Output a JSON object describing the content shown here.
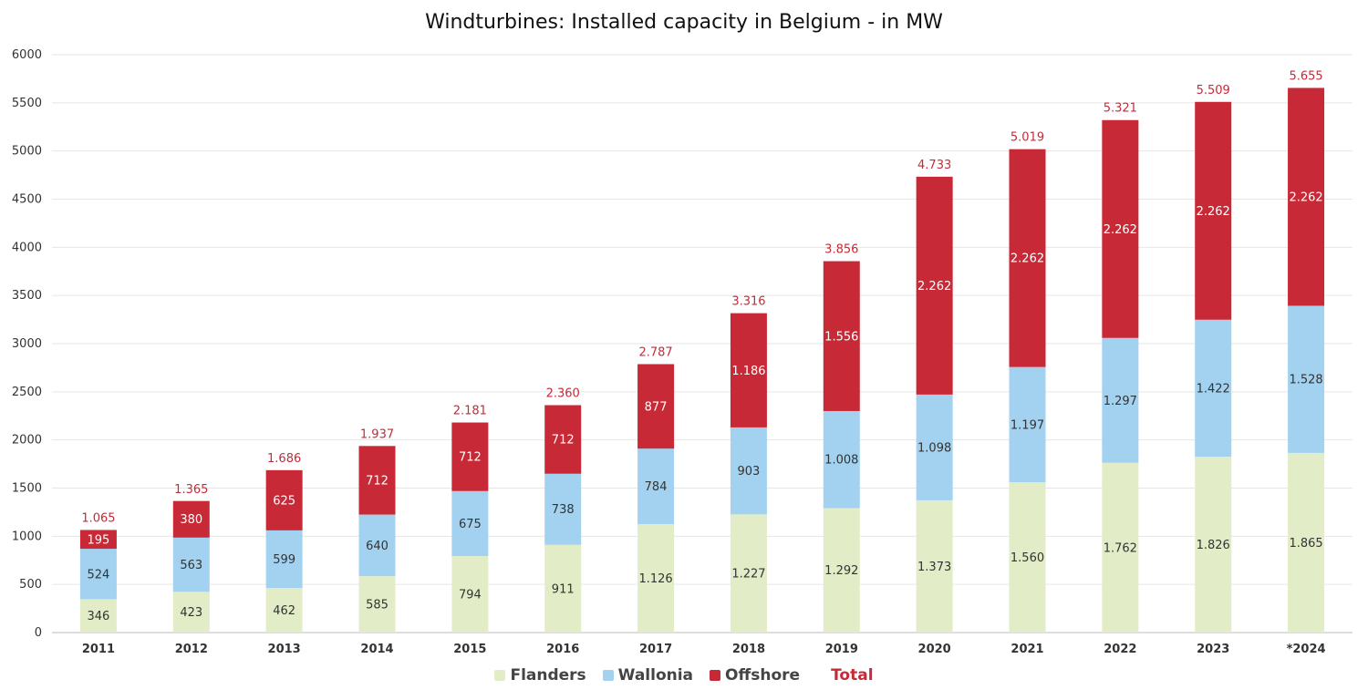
{
  "chart_data": {
    "type": "bar",
    "stacked": true,
    "title": "Windturbines: Installed capacity in Belgium - in MW",
    "categories": [
      "2011",
      "2012",
      "2013",
      "2014",
      "2015",
      "2016",
      "2017",
      "2018",
      "2019",
      "2020",
      "2021",
      "2022",
      "2023",
      "*2024"
    ],
    "series": [
      {
        "name": "Flanders",
        "color": "#e2edc8",
        "values": [
          346,
          423,
          462,
          585,
          794,
          911,
          1126,
          1227,
          1292,
          1373,
          1560,
          1762,
          1826,
          1865
        ],
        "labels": [
          "346",
          "423",
          "462",
          "585",
          "794",
          "911",
          "1.126",
          "1.227",
          "1.292",
          "1.373",
          "1.560",
          "1.762",
          "1.826",
          "1.865"
        ],
        "label_color": "#333333"
      },
      {
        "name": "Wallonia",
        "color": "#a3d2f0",
        "values": [
          524,
          563,
          599,
          640,
          675,
          738,
          784,
          903,
          1008,
          1098,
          1197,
          1297,
          1422,
          1528
        ],
        "labels": [
          "524",
          "563",
          "599",
          "640",
          "675",
          "738",
          "784",
          "903",
          "1.008",
          "1.098",
          "1.197",
          "1.297",
          "1.422",
          "1.528"
        ],
        "label_color": "#333333"
      },
      {
        "name": "Offshore",
        "color": "#c72a36",
        "values": [
          195,
          380,
          625,
          712,
          712,
          712,
          877,
          1186,
          1556,
          2262,
          2262,
          2262,
          2262,
          2262
        ],
        "labels": [
          "195",
          "380",
          "625",
          "712",
          "712",
          "712",
          "877",
          "1.186",
          "1.556",
          "2.262",
          "2.262",
          "2.262",
          "2.262",
          "2.262"
        ],
        "label_color": "#ffffff"
      }
    ],
    "totals": {
      "name": "Total",
      "color": "#c72a36",
      "values": [
        1065,
        1365,
        1686,
        1937,
        2181,
        2360,
        2787,
        3316,
        3856,
        4733,
        5019,
        5321,
        5509,
        5655
      ],
      "labels": [
        "1.065",
        "1.365",
        "1.686",
        "1.937",
        "2.181",
        "2.360",
        "2.787",
        "3.316",
        "3.856",
        "4.733",
        "5.019",
        "5.321",
        "5.509",
        "5.655"
      ]
    },
    "y_ticks": [
      0,
      500,
      1000,
      1500,
      2000,
      2500,
      3000,
      3500,
      4000,
      4500,
      5000,
      5500,
      6000
    ],
    "ylim": [
      0,
      6000
    ],
    "xlabel": "",
    "ylabel": "",
    "grid": true,
    "legend_position": "bottom-center"
  }
}
